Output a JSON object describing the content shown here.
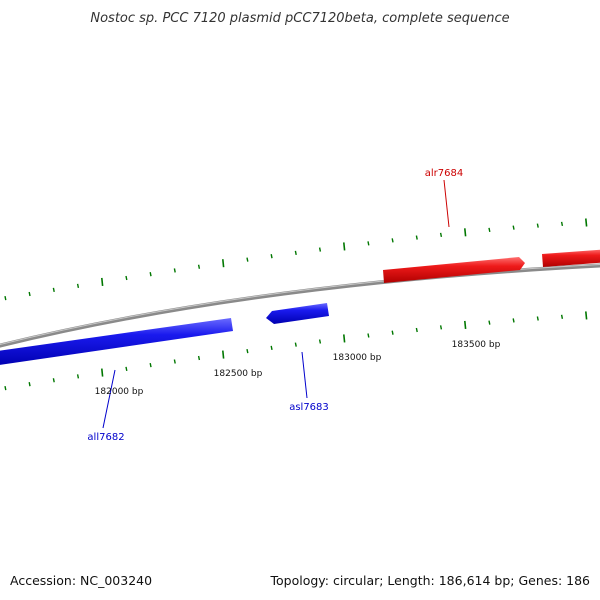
{
  "title": "Nostoc sp. PCC 7120 plasmid pCC7120beta, complete sequence",
  "footer": {
    "accession": "Accession: NC_003240",
    "summary": "Topology: circular; Length: 186,614 bp; Genes: 186"
  },
  "ruler": {
    "labels": [
      "182000 bp",
      "182500 bp",
      "183000 bp",
      "183500 bp"
    ]
  },
  "genes": [
    {
      "name": "all7682",
      "strand": "minus",
      "color": "#0000cc",
      "fill": "#1515ee"
    },
    {
      "name": "asl7683",
      "strand": "minus",
      "color": "#0000cc",
      "fill": "#1515ee"
    },
    {
      "name": "alr7684",
      "strand": "plus",
      "color": "#cc0000",
      "fill": "#ee1515"
    }
  ],
  "colors": {
    "backbone": "#8a8a8a",
    "tick": "#007700",
    "minus_strand": "#1515ee",
    "plus_strand": "#ee1515"
  }
}
